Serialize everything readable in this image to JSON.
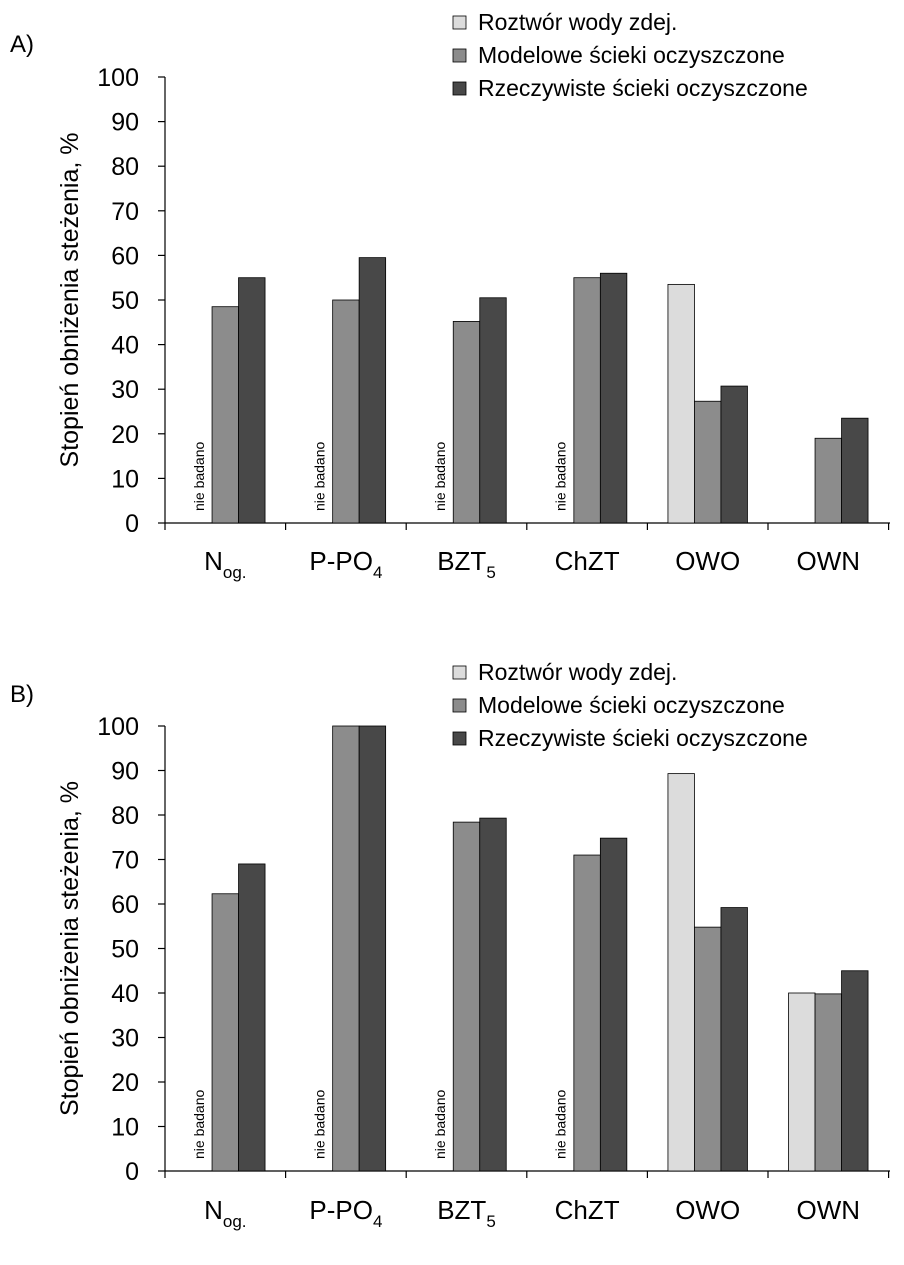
{
  "chart_data": [
    {
      "panel_label": "A)",
      "type": "bar",
      "categories": [
        {
          "main": "N",
          "sub": "og."
        },
        {
          "main": "P-PO",
          "sub": "4"
        },
        {
          "main": "BZT",
          "sub": "5"
        },
        {
          "main": "ChZT",
          "sub": ""
        },
        {
          "main": "OWO",
          "sub": ""
        },
        {
          "main": "OWN",
          "sub": ""
        }
      ],
      "series": [
        {
          "name": "Roztwór wody zdej.",
          "color": "#dcdcdc",
          "values": [
            null,
            null,
            null,
            null,
            53.5,
            null
          ]
        },
        {
          "name": "Modelowe ścieki oczyszczone",
          "color": "#8c8c8c",
          "values": [
            48.5,
            50,
            45.2,
            55,
            27.3,
            19
          ]
        },
        {
          "name": "Rzeczywiste ścieki oczyszczone",
          "color": "#484848",
          "values": [
            55,
            59.5,
            50.5,
            56,
            30.7,
            23.5
          ]
        }
      ],
      "annotations": [
        {
          "category_index": 0,
          "text": "nie badano"
        },
        {
          "category_index": 1,
          "text": "nie badano"
        },
        {
          "category_index": 2,
          "text": "nie badano"
        },
        {
          "category_index": 3,
          "text": "nie badano"
        }
      ],
      "ylabel": "Stopień obniżenia steżenia, %",
      "yticks": [
        0,
        10,
        20,
        30,
        40,
        50,
        60,
        70,
        80,
        90,
        100
      ],
      "ylim": [
        0,
        100
      ],
      "legend": "top-right"
    },
    {
      "panel_label": "B)",
      "type": "bar",
      "categories": [
        {
          "main": "N",
          "sub": "og."
        },
        {
          "main": "P-PO",
          "sub": "4"
        },
        {
          "main": "BZT",
          "sub": "5"
        },
        {
          "main": "ChZT",
          "sub": ""
        },
        {
          "main": "OWO",
          "sub": ""
        },
        {
          "main": "OWN",
          "sub": ""
        }
      ],
      "series": [
        {
          "name": "Roztwór wody zdej.",
          "color": "#dcdcdc",
          "values": [
            null,
            null,
            null,
            null,
            89.3,
            40
          ]
        },
        {
          "name": "Modelowe ścieki oczyszczone",
          "color": "#8c8c8c",
          "values": [
            62.3,
            100,
            78.4,
            71,
            54.8,
            39.8
          ]
        },
        {
          "name": "Rzeczywiste ścieki oczyszczone",
          "color": "#484848",
          "values": [
            69,
            100,
            79.3,
            74.8,
            59.2,
            45
          ]
        }
      ],
      "annotations": [
        {
          "category_index": 0,
          "text": "nie badano"
        },
        {
          "category_index": 1,
          "text": "nie badano"
        },
        {
          "category_index": 2,
          "text": "nie badano"
        },
        {
          "category_index": 3,
          "text": "nie badano"
        }
      ],
      "ylabel": "Stopień obniżenia steżenia, %",
      "yticks": [
        0,
        10,
        20,
        30,
        40,
        50,
        60,
        70,
        80,
        90,
        100
      ],
      "ylim": [
        0,
        100
      ],
      "legend": "top-right"
    }
  ]
}
